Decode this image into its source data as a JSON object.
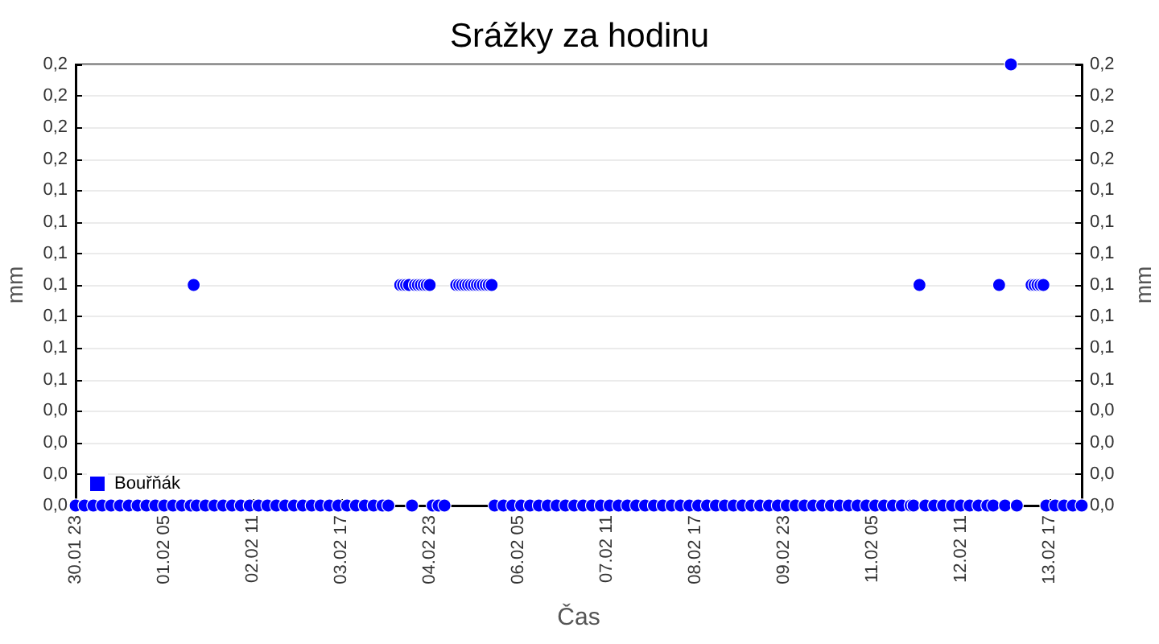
{
  "chart_data": {
    "type": "scatter",
    "title": "Srážky za hodinu",
    "xlabel": "Čas",
    "ylabel": "mm",
    "y2label": "mm",
    "xlim": [
      "--01-30T23:00",
      "--02-14T04:00"
    ],
    "xticks": [
      {
        "value": "--01-30T23:00",
        "label": "30.01 23"
      },
      {
        "value": "--02-01T05:00",
        "label": "01.02 05"
      },
      {
        "value": "--02-02T11:00",
        "label": "02.02 11"
      },
      {
        "value": "--02-03T17:00",
        "label": "03.02 17"
      },
      {
        "value": "--02-04T23:00",
        "label": "04.02 23"
      },
      {
        "value": "--02-06T05:00",
        "label": "06.02 05"
      },
      {
        "value": "--02-07T11:00",
        "label": "07.02 11"
      },
      {
        "value": "--02-08T17:00",
        "label": "08.02 17"
      },
      {
        "value": "--02-09T23:00",
        "label": "09.02 23"
      },
      {
        "value": "--02-11T05:00",
        "label": "11.02 05"
      },
      {
        "value": "--02-12T11:00",
        "label": "12.02 11"
      },
      {
        "value": "--02-13T17:00",
        "label": "13.02 17"
      }
    ],
    "ylim": [
      0,
      0.2
    ],
    "yticks": [
      {
        "value": 0,
        "label": "0,0"
      },
      {
        "value": 0.0143,
        "label": "0,0"
      },
      {
        "value": 0.0286,
        "label": "0,0"
      },
      {
        "value": 0.0429,
        "label": "0,0"
      },
      {
        "value": 0.0571,
        "label": "0,1"
      },
      {
        "value": 0.0714,
        "label": "0,1"
      },
      {
        "value": 0.0857,
        "label": "0,1"
      },
      {
        "value": 0.1,
        "label": "0,1"
      },
      {
        "value": 0.1143,
        "label": "0,1"
      },
      {
        "value": 0.1286,
        "label": "0,1"
      },
      {
        "value": 0.1429,
        "label": "0,1"
      },
      {
        "value": 0.1571,
        "label": "0,2"
      },
      {
        "value": 0.1714,
        "label": "0,2"
      },
      {
        "value": 0.1857,
        "label": "0,2"
      },
      {
        "value": 0.2,
        "label": "0,2"
      }
    ],
    "y2lim": [
      0,
      0.2
    ],
    "y2ticks": [
      {
        "value": 0,
        "label": "0,0"
      },
      {
        "value": 0.0143,
        "label": "0,0"
      },
      {
        "value": 0.0286,
        "label": "0,0"
      },
      {
        "value": 0.0429,
        "label": "0,0"
      },
      {
        "value": 0.0571,
        "label": "0,1"
      },
      {
        "value": 0.0714,
        "label": "0,1"
      },
      {
        "value": 0.0857,
        "label": "0,1"
      },
      {
        "value": 0.1,
        "label": "0,1"
      },
      {
        "value": 0.1143,
        "label": "0,1"
      },
      {
        "value": 0.1286,
        "label": "0,1"
      },
      {
        "value": 0.1429,
        "label": "0,1"
      },
      {
        "value": 0.1571,
        "label": "0,2"
      },
      {
        "value": 0.1714,
        "label": "0,2"
      },
      {
        "value": 0.1857,
        "label": "0,2"
      },
      {
        "value": 0.2,
        "label": "0,2"
      }
    ],
    "grid": "y",
    "legend": "bottom left",
    "marker": "circle",
    "x": [
      "--01-30T23:00",
      "--01-31T02:00",
      "--01-31T05:00",
      "--01-31T08:00",
      "--01-31T11:00",
      "--01-31T14:00",
      "--01-31T17:00",
      "--01-31T20:00",
      "--01-31T23:00",
      "--02-01T02:00",
      "--02-01T05:00",
      "--02-01T08:00",
      "--02-01T11:00",
      "--02-01T14:00",
      "--02-01T15:00",
      "--02-01T16:00",
      "--02-01T19:00",
      "--02-01T22:00",
      "--02-02T01:00",
      "--02-02T04:00",
      "--02-02T07:00",
      "--02-02T10:00",
      "--02-02T13:00",
      "--02-02T16:00",
      "--02-02T19:00",
      "--02-02T22:00",
      "--02-03T01:00",
      "--02-03T04:00",
      "--02-03T07:00",
      "--02-03T10:00",
      "--02-03T13:00",
      "--02-03T16:00",
      "--02-03T19:00",
      "--02-03T22:00",
      "--02-04T01:00",
      "--02-04T04:00",
      "--02-04T07:00",
      "--02-04T09:00",
      "--02-04T13:00",
      "--02-04T14:00",
      "--02-04T15:00",
      "--02-04T16:00",
      "--02-04T17:00",
      "--02-04T18:00",
      "--02-04T19:00",
      "--02-04T20:00",
      "--02-04T21:00",
      "--02-04T22:00",
      "--02-04T23:00",
      "--02-05T00:00",
      "--02-05T02:00",
      "--02-05T04:00",
      "--02-05T08:00",
      "--02-05T09:00",
      "--02-05T10:00",
      "--02-05T11:00",
      "--02-05T12:00",
      "--02-05T13:00",
      "--02-05T14:00",
      "--02-05T15:00",
      "--02-05T16:00",
      "--02-05T17:00",
      "--02-05T18:00",
      "--02-05T19:00",
      "--02-05T20:00",
      "--02-05T21:00",
      "--02-06T00:00",
      "--02-06T03:00",
      "--02-06T06:00",
      "--02-06T09:00",
      "--02-06T12:00",
      "--02-06T15:00",
      "--02-06T18:00",
      "--02-06T21:00",
      "--02-07T00:00",
      "--02-07T03:00",
      "--02-07T06:00",
      "--02-07T09:00",
      "--02-07T12:00",
      "--02-07T15:00",
      "--02-07T18:00",
      "--02-07T21:00",
      "--02-08T00:00",
      "--02-08T03:00",
      "--02-08T06:00",
      "--02-08T09:00",
      "--02-08T12:00",
      "--02-08T15:00",
      "--02-08T18:00",
      "--02-08T21:00",
      "--02-09T00:00",
      "--02-09T03:00",
      "--02-09T06:00",
      "--02-09T09:00",
      "--02-09T12:00",
      "--02-09T15:00",
      "--02-09T18:00",
      "--02-09T21:00",
      "--02-10T00:00",
      "--02-10T03:00",
      "--02-10T06:00",
      "--02-10T09:00",
      "--02-10T12:00",
      "--02-10T15:00",
      "--02-10T18:00",
      "--02-10T21:00",
      "--02-11T00:00",
      "--02-11T03:00",
      "--02-11T06:00",
      "--02-11T09:00",
      "--02-11T12:00",
      "--02-11T15:00",
      "--02-11T18:00",
      "--02-11T19:00",
      "--02-11T21:00",
      "--02-11T23:00",
      "--02-12T02:00",
      "--02-12T05:00",
      "--02-12T08:00",
      "--02-12T11:00",
      "--02-12T14:00",
      "--02-12T17:00",
      "--02-12T20:00",
      "--02-12T22:00",
      "--02-13T00:00",
      "--02-13T02:00",
      "--02-13T04:00",
      "--02-13T06:00",
      "--02-13T11:00",
      "--02-13T12:00",
      "--02-13T13:00",
      "--02-13T14:00",
      "--02-13T15:00",
      "--02-13T16:00",
      "--02-13T19:00",
      "--02-13T22:00",
      "--02-14T01:00",
      "--02-14T04:00"
    ],
    "series": [
      {
        "name": "Bouřňák",
        "color": "#0000ff",
        "values": [
          0,
          0,
          0,
          0,
          0,
          0,
          0,
          0,
          0,
          0,
          0,
          0,
          0,
          0,
          0.1,
          0,
          0,
          0,
          0,
          0,
          0,
          0,
          0,
          0,
          0,
          0,
          0,
          0,
          0,
          0,
          0,
          0,
          0,
          0,
          0,
          0,
          0,
          0,
          0.1,
          0.1,
          0.1,
          0.1,
          0,
          0.1,
          0.1,
          0.1,
          0.1,
          0.1,
          0.1,
          0,
          0,
          0,
          0.1,
          0.1,
          0.1,
          0.1,
          0.1,
          0.1,
          0.1,
          0.1,
          0.1,
          0.1,
          0.1,
          0.1,
          0.1,
          0,
          0,
          0,
          0,
          0,
          0,
          0,
          0,
          0,
          0,
          0,
          0,
          0,
          0,
          0,
          0,
          0,
          0,
          0,
          0,
          0,
          0,
          0,
          0,
          0,
          0,
          0,
          0,
          0,
          0,
          0,
          0,
          0,
          0,
          0,
          0,
          0,
          0,
          0,
          0,
          0,
          0,
          0,
          0,
          0,
          0,
          0,
          0,
          0,
          0.1,
          0,
          0,
          0,
          0,
          0,
          0,
          0,
          0,
          0,
          0.1,
          0,
          0.2,
          0,
          0.1,
          0.1,
          0.1,
          0.1,
          0.1,
          0,
          0,
          0,
          0,
          0
        ]
      }
    ]
  }
}
